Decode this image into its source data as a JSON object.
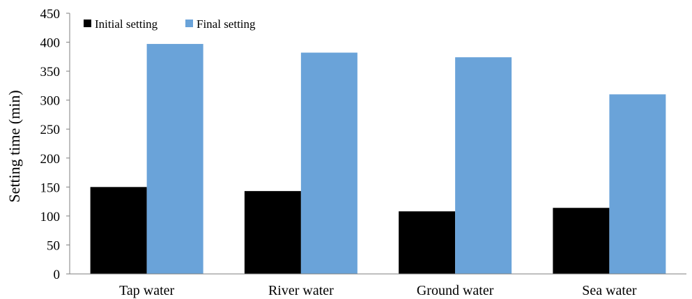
{
  "chart_data": {
    "type": "bar",
    "title": "",
    "xlabel": "",
    "ylabel": "Setting time (min)",
    "ylim": [
      0,
      450
    ],
    "yticks": [
      0,
      50,
      100,
      150,
      200,
      250,
      300,
      350,
      400,
      450
    ],
    "grid": false,
    "legend_position": "top-left",
    "categories": [
      "Tap water",
      "River water",
      "Ground water",
      "Sea water"
    ],
    "series": [
      {
        "name": "Initial setting",
        "color": "#000000",
        "values": [
          150,
          143,
          108,
          114
        ]
      },
      {
        "name": "Final setting",
        "color": "#6aa3d9",
        "values": [
          397,
          382,
          374,
          310
        ]
      }
    ]
  }
}
